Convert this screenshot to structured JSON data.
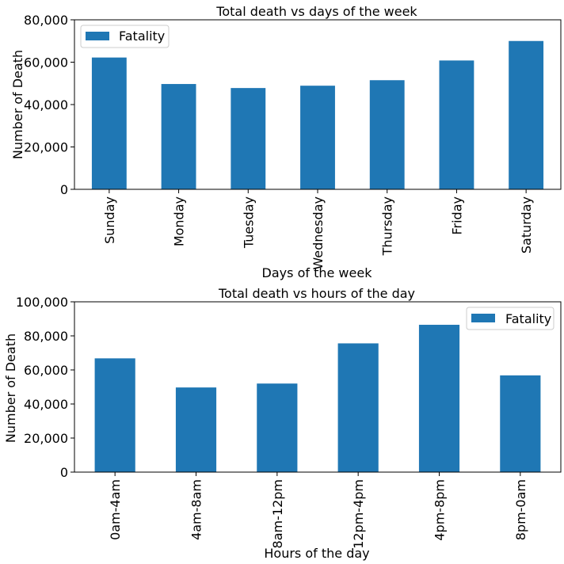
{
  "chart_data": [
    {
      "type": "bar",
      "title": "Total death vs days of the week",
      "xlabel": "Days of the week",
      "ylabel": "Number of Death",
      "categories": [
        "Sunday",
        "Monday",
        "Tuesday",
        "Wednesday",
        "Thursday",
        "Friday",
        "Saturday"
      ],
      "series": [
        {
          "name": "Fatality",
          "color": "#1f77b4",
          "values": [
            62200,
            49700,
            47800,
            48900,
            51500,
            60800,
            70000
          ]
        }
      ],
      "ylim": [
        0,
        80000
      ],
      "yticks": [
        0,
        20000,
        40000,
        60000,
        80000
      ],
      "ytick_labels": [
        "0",
        "20,000",
        "40,000",
        "60,000",
        "80,000"
      ],
      "grid": false,
      "legend_position": "top-left"
    },
    {
      "type": "bar",
      "title": "Total death vs hours of the day",
      "xlabel": "Hours of the day",
      "ylabel": "Number of Death",
      "categories": [
        "0am-4am",
        "4am-8am",
        "8am-12pm",
        "12pm-4pm",
        "4pm-8pm",
        "8pm-0am"
      ],
      "series": [
        {
          "name": "Fatality",
          "color": "#1f77b4",
          "values": [
            66800,
            49700,
            52000,
            75600,
            86500,
            56800
          ]
        }
      ],
      "ylim": [
        0,
        100000
      ],
      "yticks": [
        0,
        20000,
        40000,
        60000,
        80000,
        100000
      ],
      "ytick_labels": [
        "0",
        "20,000",
        "40,000",
        "60,000",
        "80,000",
        "100,000"
      ],
      "grid": false,
      "legend_position": "top-right"
    }
  ]
}
